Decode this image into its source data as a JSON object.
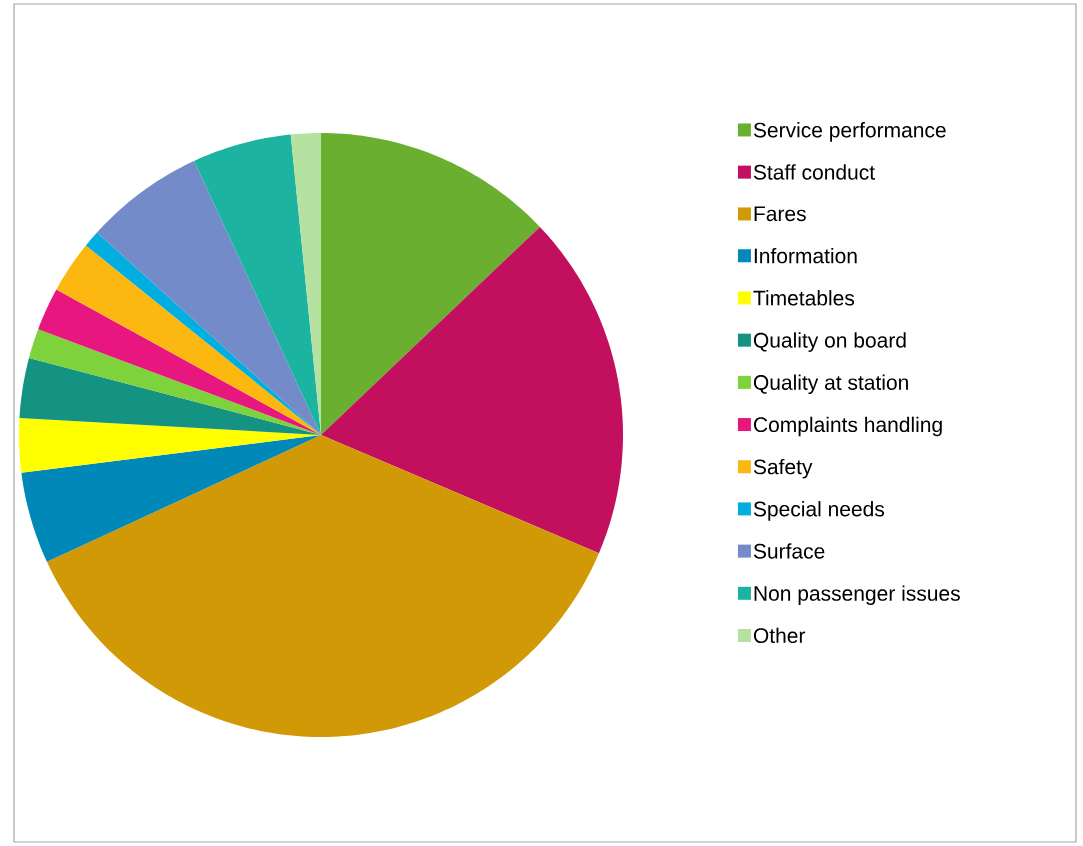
{
  "chart_data": {
    "type": "pie",
    "categories": [
      "Service performance",
      "Staff conduct",
      "Fares",
      "Information",
      "Timetables",
      "Quality on board",
      "Quality at station",
      "Complaints handling",
      "Safety",
      "Special needs",
      "Surface",
      "Non passenger issues",
      "Other"
    ],
    "values": [
      12.9,
      18.5,
      36.7,
      4.9,
      2.9,
      3.2,
      1.6,
      2.3,
      2.8,
      0.9,
      6.4,
      5.3,
      1.6
    ],
    "colors": [
      "#6aaf30",
      "#c2105f",
      "#d29906",
      "#0088b8",
      "#ffff00",
      "#149282",
      "#7ed23c",
      "#e8177f",
      "#fcb711",
      "#00aedf",
      "#738bc8",
      "#1cb3a0",
      "#b6e2a1"
    ],
    "legend": "right"
  }
}
